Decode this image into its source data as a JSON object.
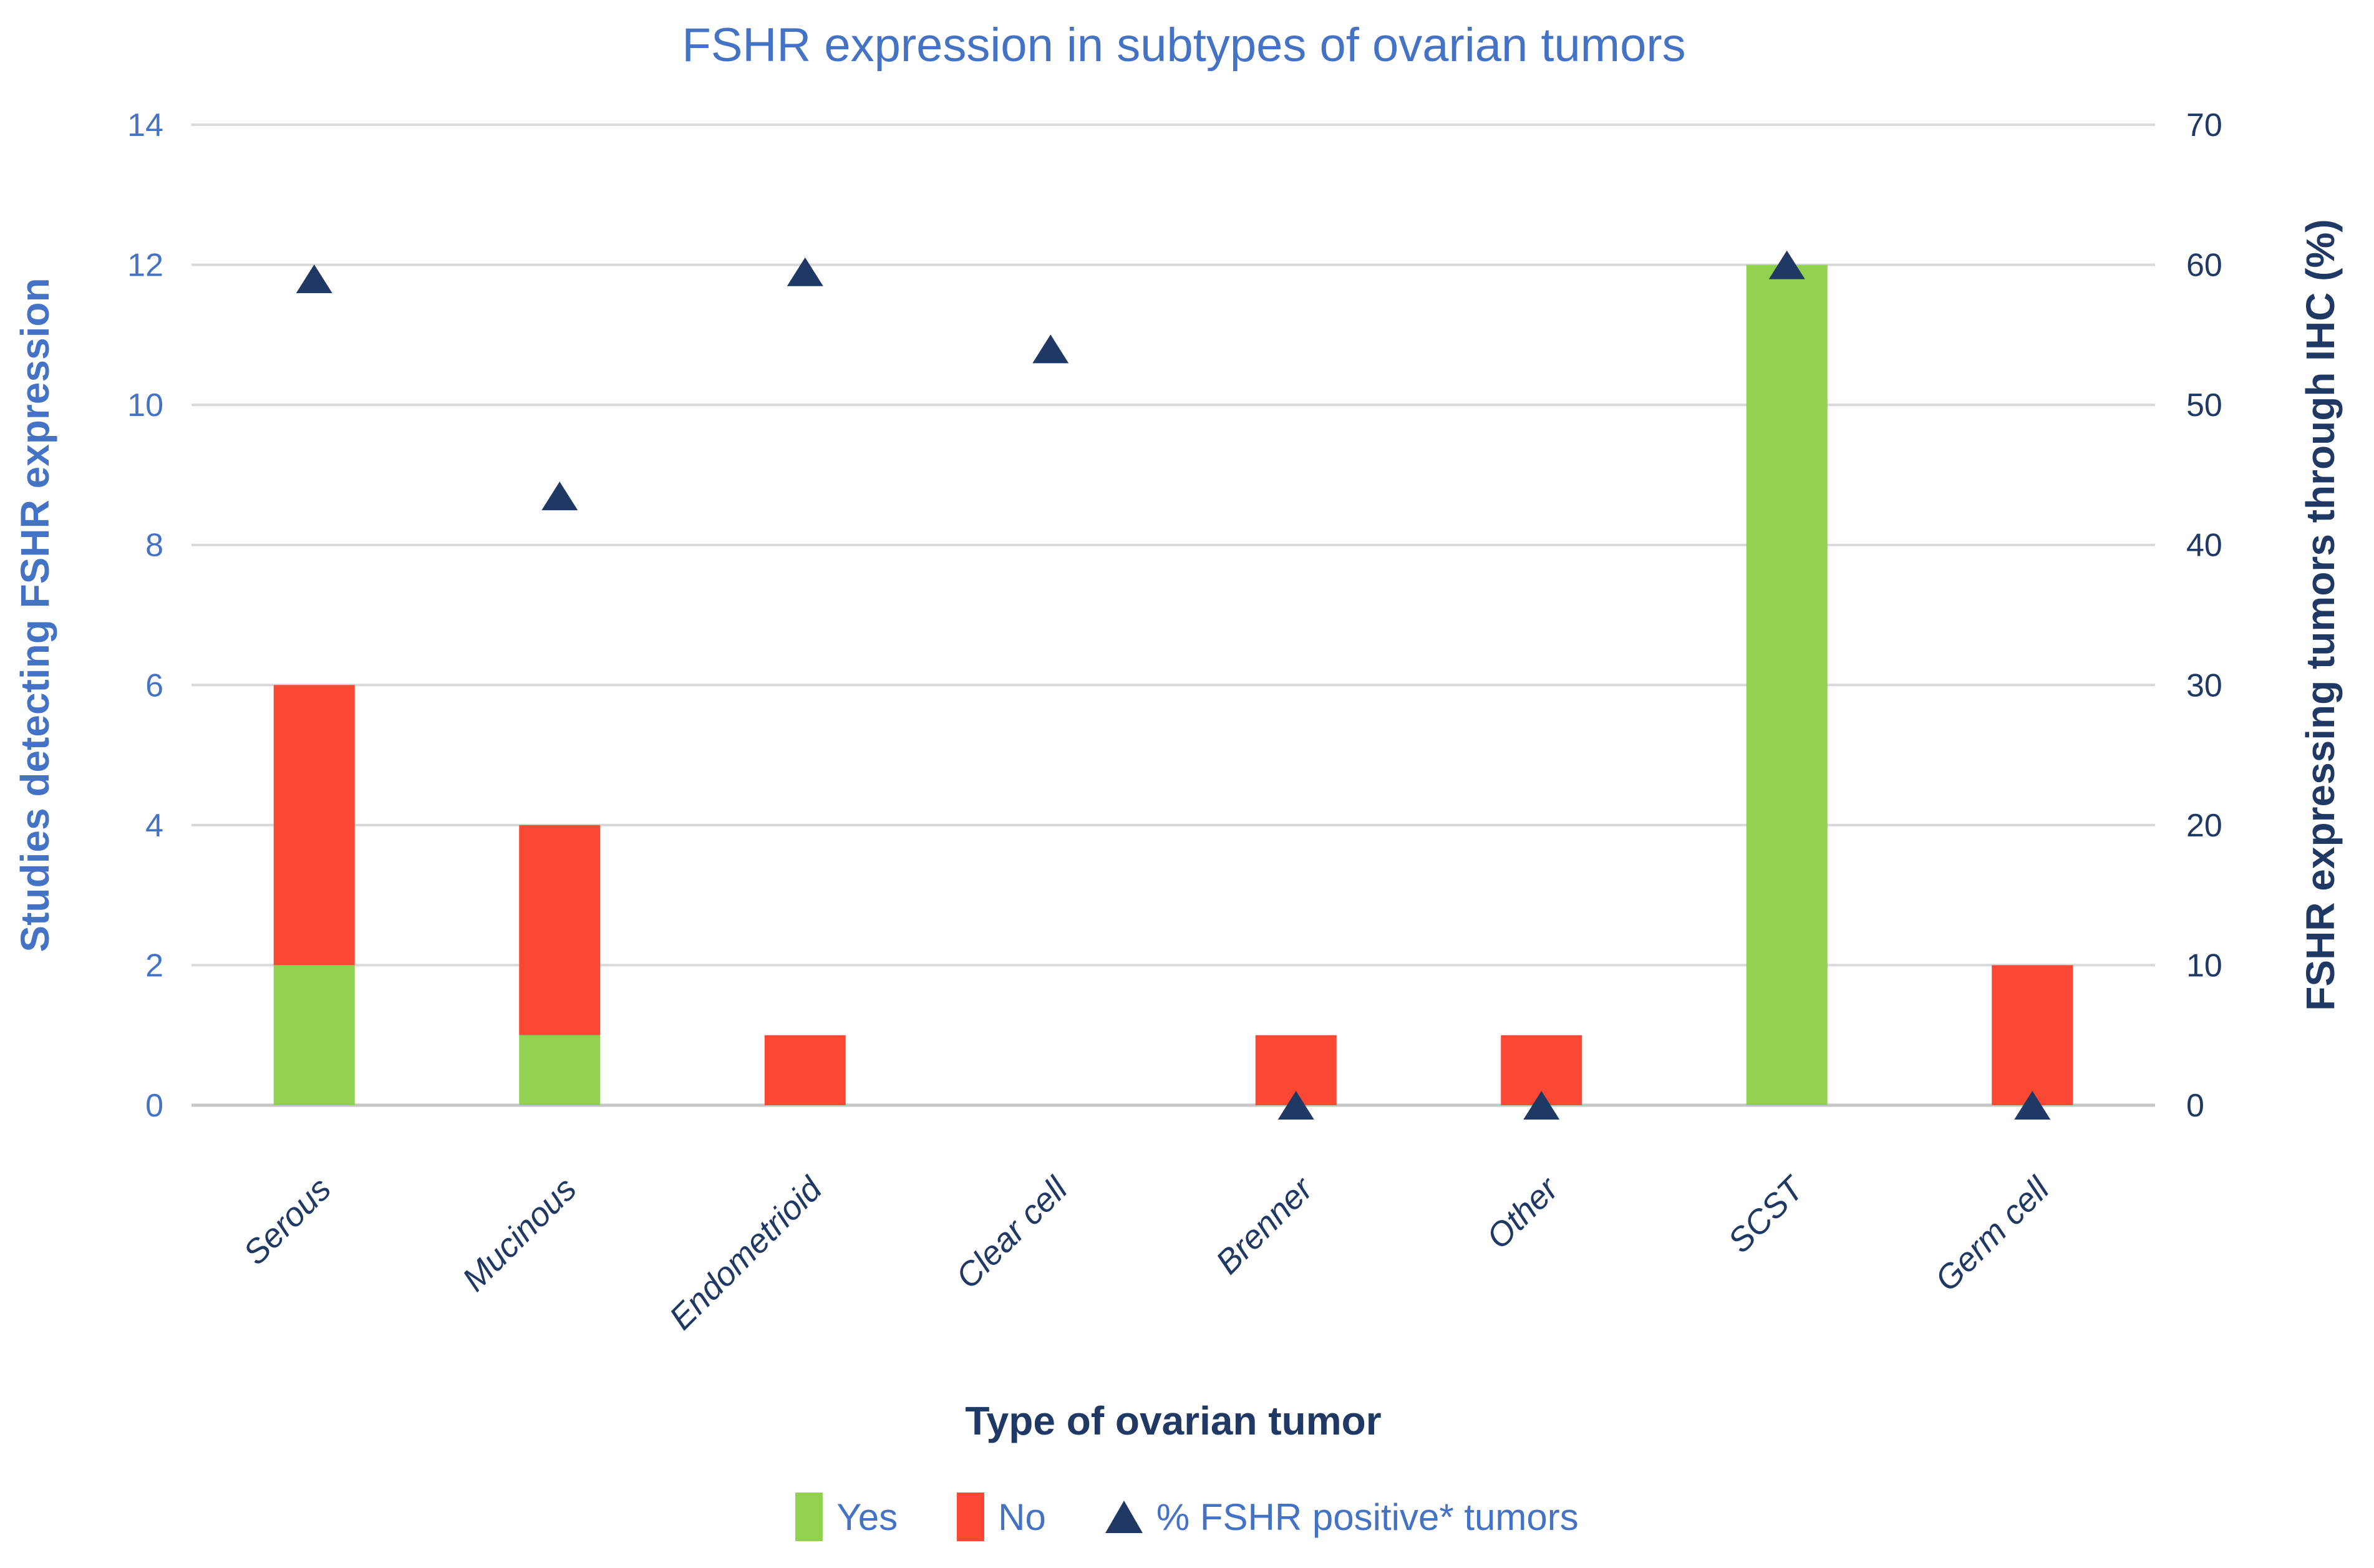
{
  "page": {
    "background": "#FFFFFF"
  },
  "chart_data": {
    "type": "bar",
    "subtype": "stacked-column-with-triangle-scatter-overlay",
    "title": "FSHR expression in subtypes of ovarian tumors",
    "xlabel": "Type of ovarian tumor",
    "ylabel_left": "Studies detecting FSHR expression",
    "ylabel_right": "FSHR expressing tumors through IHC (%)",
    "categories": [
      "Serous",
      "Mucinous",
      "Endometrioid",
      "Clear cell",
      "Brenner",
      "Other",
      "SCST",
      "Germ cell"
    ],
    "series": [
      {
        "name": "Yes",
        "type": "bar",
        "stack": "studies",
        "axis": "left",
        "color": "#92D050",
        "values": [
          2,
          1,
          0,
          0,
          0,
          0,
          12,
          0
        ]
      },
      {
        "name": "No",
        "type": "bar",
        "stack": "studies",
        "axis": "left",
        "color": "#FA4834",
        "values": [
          4,
          3,
          1,
          0,
          1,
          1,
          0,
          2
        ]
      },
      {
        "name": "% FSHR positive* tumors",
        "type": "scatter",
        "marker": "triangle-up",
        "axis": "right",
        "color": "#1F3864",
        "values": [
          59,
          43.5,
          59.5,
          54,
          0,
          0,
          60,
          0
        ]
      }
    ],
    "ylim_left": [
      0,
      14
    ],
    "yticks_left": [
      0,
      2,
      4,
      6,
      8,
      10,
      12,
      14
    ],
    "ylim_right": [
      0,
      70
    ],
    "yticks_right": [
      0,
      10,
      20,
      30,
      40,
      50,
      60,
      70
    ],
    "grid": true,
    "legend_position": "bottom"
  },
  "colors": {
    "title_text": "#4472C4",
    "left_axis_text": "#4472C4",
    "right_axis_text": "#1F3864",
    "x_label_text": "#1F3864",
    "gridline": "#D9D9D9",
    "axis_line": "#C6C6C6",
    "bar_yes": "#92D050",
    "bar_no": "#FA4834",
    "triangle": "#1F3864",
    "background": "#FFFFFF"
  }
}
